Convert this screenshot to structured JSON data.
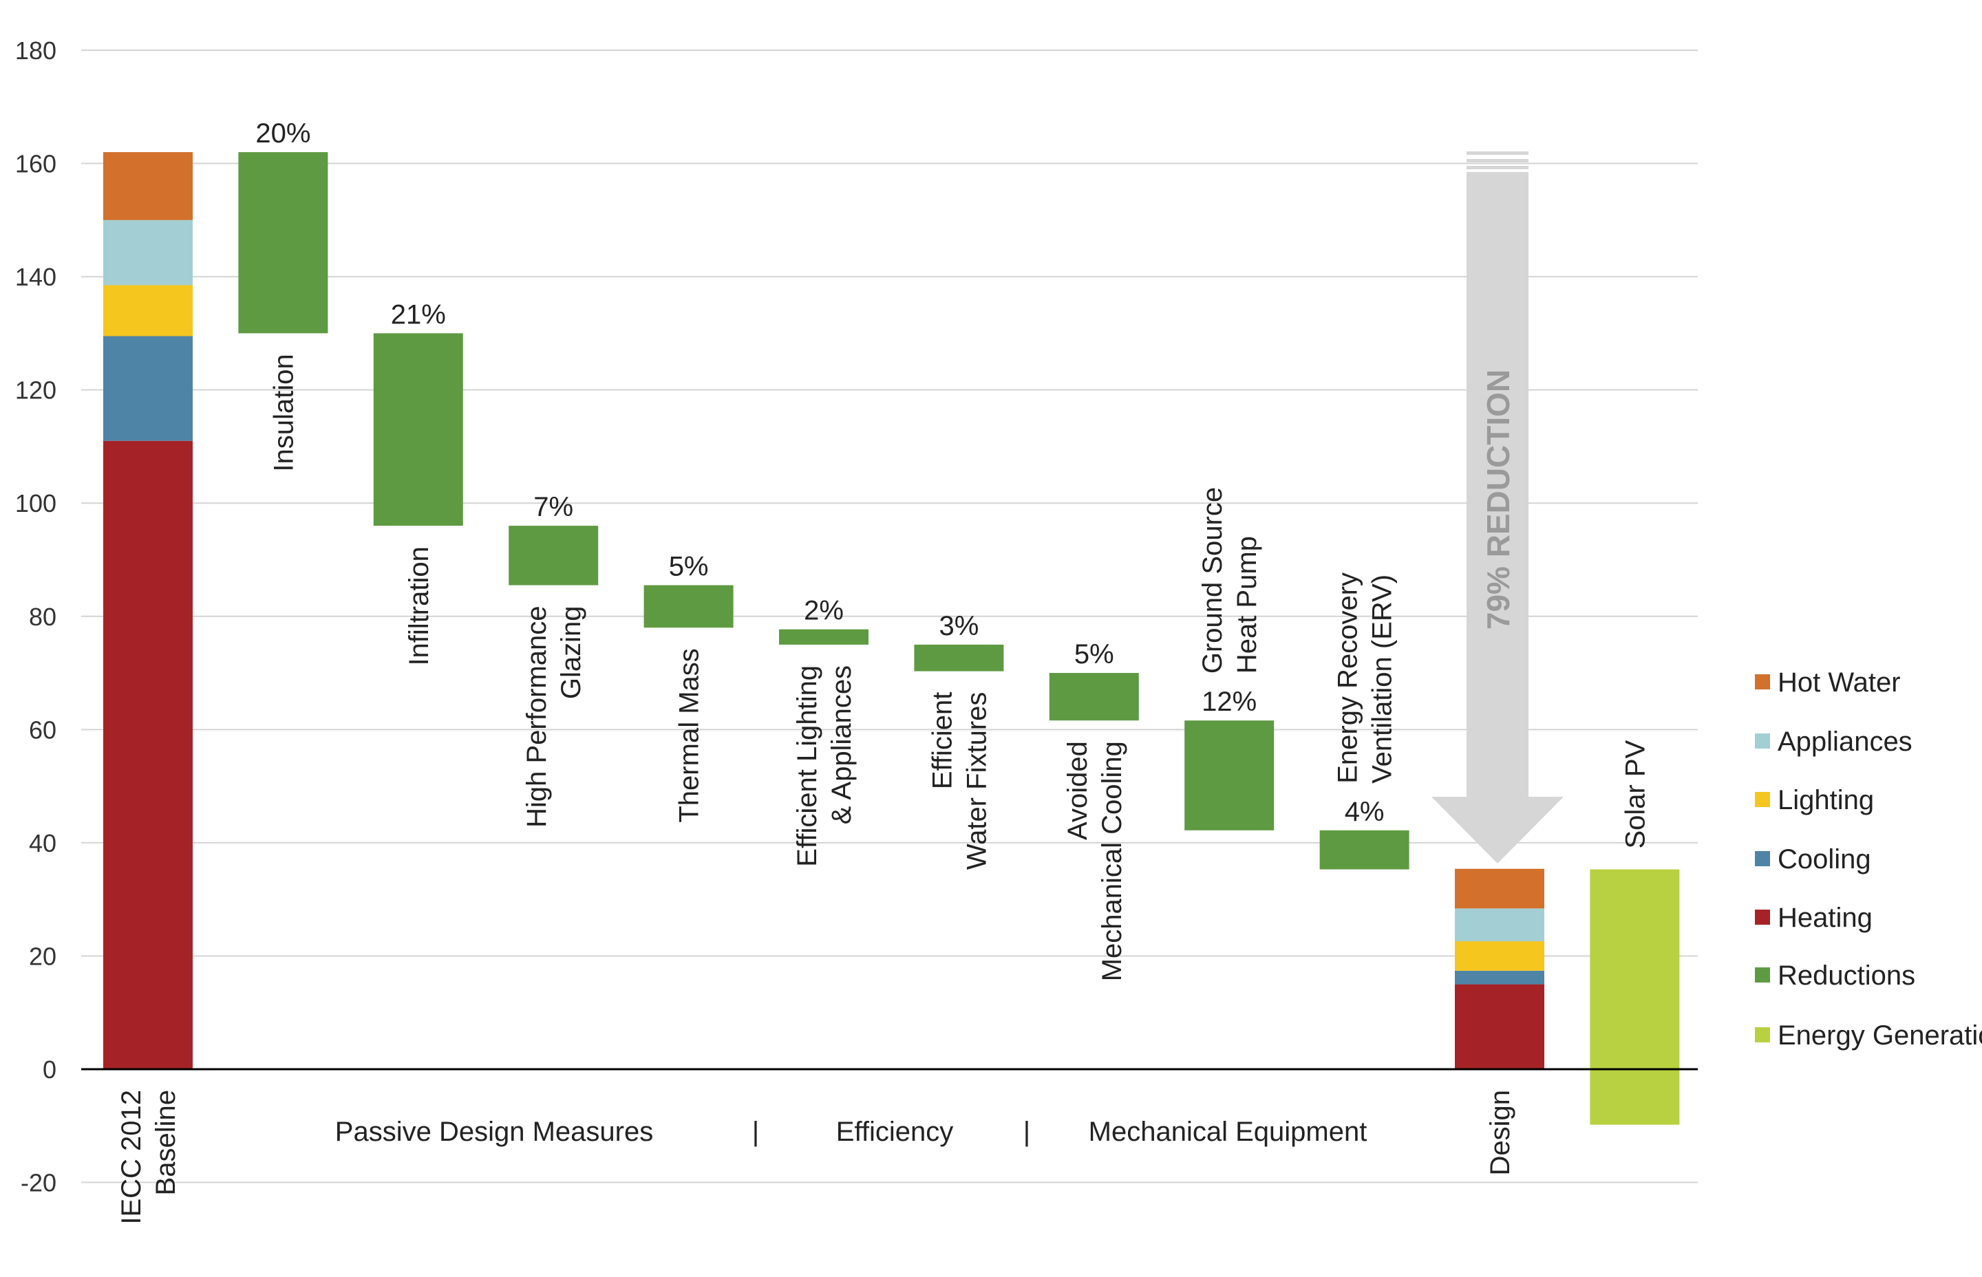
{
  "chart_data": {
    "type": "bar",
    "subtype": "waterfall",
    "ylim": [
      -20,
      180
    ],
    "yticks": [
      -20,
      0,
      20,
      40,
      60,
      80,
      100,
      120,
      140,
      160,
      180
    ],
    "grid": true,
    "legend_position": "right",
    "legend": [
      {
        "name": "Hot Water",
        "color": "#d2702c"
      },
      {
        "name": "Appliances",
        "color": "#a3cfd4"
      },
      {
        "name": "Lighting",
        "color": "#f5c61e"
      },
      {
        "name": "Cooling",
        "color": "#4e84a6"
      },
      {
        "name": "Heating",
        "color": "#a52327"
      },
      {
        "name": "Reductions",
        "color": "#5e9a41"
      },
      {
        "name": "Energy Generation",
        "color": "#b8d140"
      }
    ],
    "bars": [
      {
        "label": [
          "IECC 2012",
          "Baseline"
        ],
        "kind": "stack",
        "stack": {
          "Heating": 111,
          "Cooling": 18.5,
          "Lighting": 9,
          "Appliances": 11.5,
          "Hot Water": 12
        }
      },
      {
        "label": [
          "Insulation"
        ],
        "kind": "reduction",
        "from": 162,
        "to": 130,
        "pct": "20%"
      },
      {
        "label": [
          "Infiltration"
        ],
        "kind": "reduction",
        "from": 130,
        "to": 96,
        "pct": "21%"
      },
      {
        "label": [
          "High Performance",
          "Glazing"
        ],
        "kind": "reduction",
        "from": 96,
        "to": 85.5,
        "pct": "7%"
      },
      {
        "label": [
          "Thermal Mass"
        ],
        "kind": "reduction",
        "from": 85.5,
        "to": 78,
        "pct": "5%"
      },
      {
        "label": [
          "Efficient Lighting",
          "& Appliances"
        ],
        "kind": "reduction",
        "from": 77.7,
        "to": 75,
        "pct": "2%"
      },
      {
        "label": [
          "Efficient",
          "Water Fixtures"
        ],
        "kind": "reduction",
        "from": 75,
        "to": 70.3,
        "pct": "3%"
      },
      {
        "label": [
          "Avoided",
          "Mechanical Cooling"
        ],
        "kind": "reduction",
        "from": 70,
        "to": 61.6,
        "pct": "5%"
      },
      {
        "label": [
          "Ground Source",
          "Heat Pump"
        ],
        "kind": "reduction",
        "from": 61.6,
        "to": 42.2,
        "pct": "12%",
        "label_above": true
      },
      {
        "label": [
          "Energy Recovery",
          "Ventilation (ERV)"
        ],
        "kind": "reduction",
        "from": 42.2,
        "to": 35.3,
        "pct": "4%",
        "label_above": true
      },
      {
        "label": [
          "Design"
        ],
        "kind": "stack",
        "stack": {
          "Heating": 15,
          "Cooling": 2.4,
          "Lighting": 5.2,
          "Appliances": 5.8,
          "Hot Water": 7
        }
      },
      {
        "label": [
          "Solar PV"
        ],
        "kind": "generation",
        "from": 35.3,
        "to": -9.8,
        "label_above": true
      }
    ],
    "groups": [
      {
        "label": "Passive Design Measures"
      },
      {
        "label": "|"
      },
      {
        "label": "Efficiency"
      },
      {
        "label": "|"
      },
      {
        "label": "Mechanical Equipment"
      }
    ],
    "annotation": "79% REDUCTION"
  }
}
